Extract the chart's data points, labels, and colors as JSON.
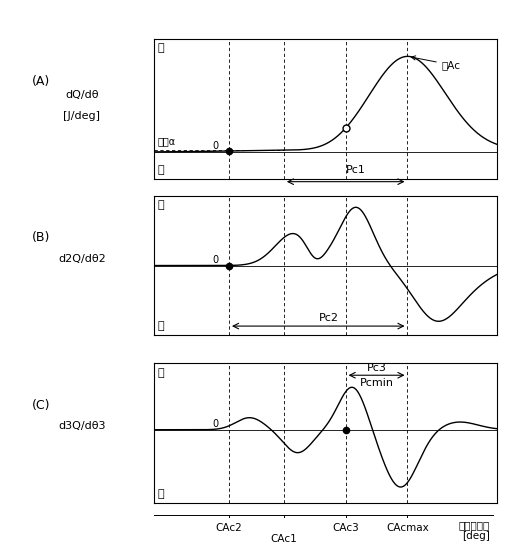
{
  "background_color": "#ffffff",
  "panels": [
    "(A)",
    "(B)",
    "(C)"
  ],
  "ylabel_A_line1": "dQ/dθ",
  "ylabel_A_line2": "[J/deg]",
  "ylabel_B": "d2Q/dθ2",
  "ylabel_C": "d3Q/dθ3",
  "pos_label": "正",
  "neg_label": "負",
  "zero_label": "0",
  "threshold_label": "門値α",
  "Pc1_label": "Pc1",
  "Pc2_label": "Pc2",
  "Pc3_label": "Pc3",
  "Pcmin_label": "Pcmin",
  "point_Ac_label": "点Ac",
  "xranku_label": "クランク角",
  "deg_label": "[deg]",
  "CAc1_label": "CAc1",
  "CAc2_label": "CAc2",
  "CAc3_label": "CAc3",
  "CAcmax_label": "CAcmax",
  "vline_x": [
    0.22,
    0.38,
    0.56,
    0.74
  ],
  "plot_xlim": [
    0.0,
    1.0
  ],
  "figsize": [
    5.12,
    5.59
  ],
  "dpi": 100
}
